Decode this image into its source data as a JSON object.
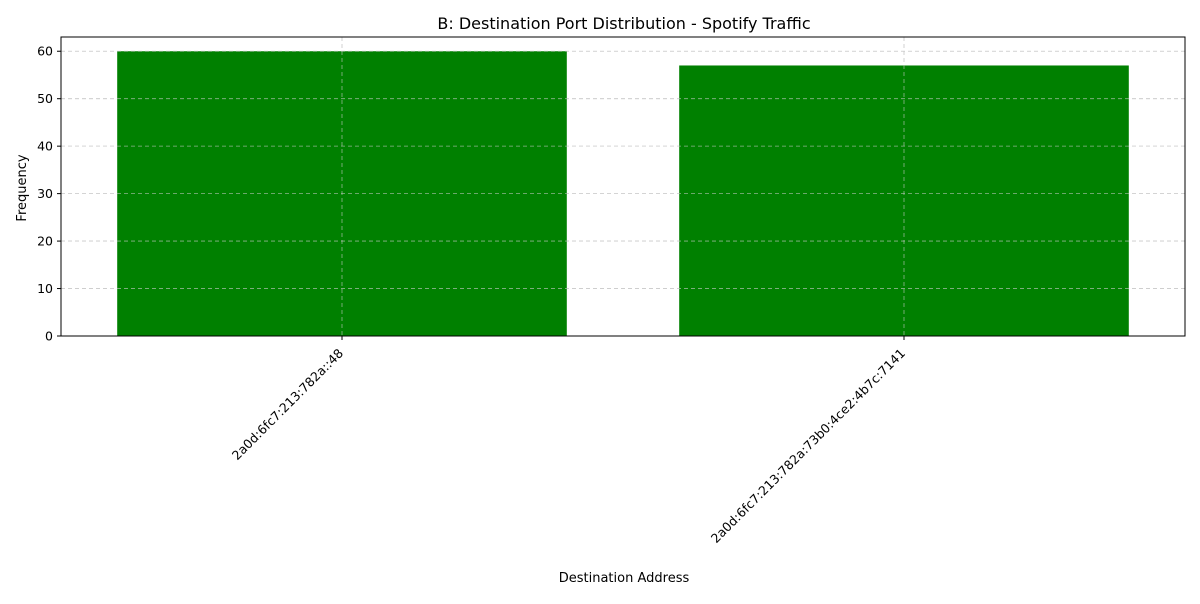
{
  "chart_data": {
    "type": "bar",
    "title": "B: Destination Port Distribution - Spotify Traffic",
    "xlabel": "Destination Address",
    "ylabel": "Frequency",
    "categories": [
      "2a0d:6fc7:213:782a::48",
      "2a0d:6fc7:213:782a:73b0:4ce2:4b7c:7141"
    ],
    "values": [
      60,
      57
    ],
    "ylim": [
      0,
      63
    ],
    "yticks": [
      0,
      10,
      20,
      30,
      40,
      50,
      60
    ],
    "bar_color": "#008000",
    "grid": true,
    "grid_style": "dashed",
    "xtick_rotation": 45,
    "legend": "none"
  }
}
